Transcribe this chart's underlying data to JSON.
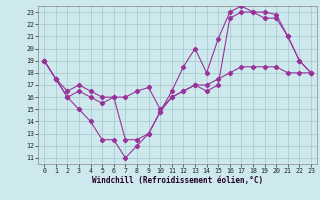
{
  "xlabel": "Windchill (Refroidissement éolien,°C)",
  "bg_color": "#cee9ee",
  "grid_color": "#aaccd0",
  "line_color": "#993399",
  "xlim": [
    -0.5,
    23.5
  ],
  "ylim": [
    10.5,
    23.5
  ],
  "xticks": [
    0,
    1,
    2,
    3,
    4,
    5,
    6,
    7,
    8,
    9,
    10,
    11,
    12,
    13,
    14,
    15,
    16,
    17,
    18,
    19,
    20,
    21,
    22,
    23
  ],
  "yticks": [
    11,
    12,
    13,
    14,
    15,
    16,
    17,
    18,
    19,
    20,
    21,
    22,
    23
  ],
  "line1_x": [
    0,
    1,
    2,
    3,
    4,
    5,
    6,
    7,
    8,
    9,
    10,
    11,
    12,
    13,
    14,
    15,
    16,
    17,
    18,
    19,
    20,
    21,
    22,
    23
  ],
  "line1_y": [
    19,
    17.5,
    16.5,
    17,
    16.5,
    16,
    16,
    12.5,
    12.5,
    13,
    14.8,
    16,
    16.5,
    17,
    16.5,
    17,
    22.5,
    23,
    23,
    22.5,
    22.5,
    21,
    19,
    18
  ],
  "line2_x": [
    0,
    1,
    2,
    3,
    4,
    5,
    6,
    7,
    8,
    9,
    10,
    11,
    12,
    13,
    14,
    15,
    16,
    17,
    18,
    19,
    20,
    21,
    22,
    23
  ],
  "line2_y": [
    19,
    17.5,
    16,
    15,
    14,
    12.5,
    12.5,
    11,
    12,
    13,
    14.8,
    16.5,
    18.5,
    20,
    18,
    20.8,
    23,
    23.5,
    23,
    23,
    22.8,
    21,
    19,
    18
  ],
  "line3_x": [
    0,
    1,
    2,
    3,
    4,
    5,
    6,
    7,
    8,
    9,
    10,
    11,
    12,
    13,
    14,
    15,
    16,
    17,
    18,
    19,
    20,
    21,
    22,
    23
  ],
  "line3_y": [
    19,
    17.5,
    16,
    16.5,
    16,
    15.5,
    16,
    16,
    16.5,
    16.8,
    15,
    16,
    16.5,
    17,
    17,
    17.5,
    18,
    18.5,
    18.5,
    18.5,
    18.5,
    18,
    18,
    18
  ]
}
